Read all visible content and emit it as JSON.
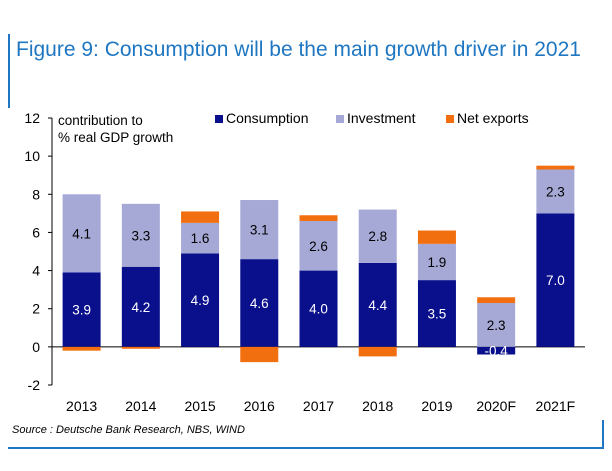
{
  "title": "Figure 9: Consumption will be the main growth driver in 2021",
  "source": "Source : Deutsche Bank Research, NBS, WIND",
  "chart_data": {
    "type": "bar",
    "stacked": true,
    "ylabel": "contribution to % real GDP growth",
    "ylabel_lines": [
      "contribution to",
      "% real GDP growth"
    ],
    "ylim": [
      -2,
      12
    ],
    "yticks": [
      -2,
      0,
      2,
      4,
      6,
      8,
      10,
      12
    ],
    "categories": [
      "2013",
      "2014",
      "2015",
      "2016",
      "2017",
      "2018",
      "2019",
      "2020F",
      "2021F"
    ],
    "legend_position": "top",
    "series": [
      {
        "name": "Consumption",
        "color": "#0a0f8c",
        "values": [
          3.9,
          4.2,
          4.9,
          4.6,
          4.0,
          4.4,
          3.5,
          -0.4,
          7.0
        ],
        "labels": [
          "3.9",
          "4.2",
          "4.9",
          "4.6",
          "4.0",
          "4.4",
          "3.5",
          "-0.4",
          "7.0"
        ]
      },
      {
        "name": "Investment",
        "color": "#a6a9d6",
        "values": [
          4.1,
          3.3,
          1.6,
          3.1,
          2.6,
          2.8,
          1.9,
          2.3,
          2.3
        ],
        "labels": [
          "4.1",
          "3.3",
          "1.6",
          "3.1",
          "2.6",
          "2.8",
          "1.9",
          "2.3",
          "2.3"
        ]
      },
      {
        "name": "Net exports",
        "color": "#f26f0f",
        "values": [
          -0.2,
          -0.1,
          0.6,
          -0.8,
          0.3,
          -0.5,
          0.7,
          0.3,
          0.2
        ],
        "labels": []
      }
    ]
  }
}
